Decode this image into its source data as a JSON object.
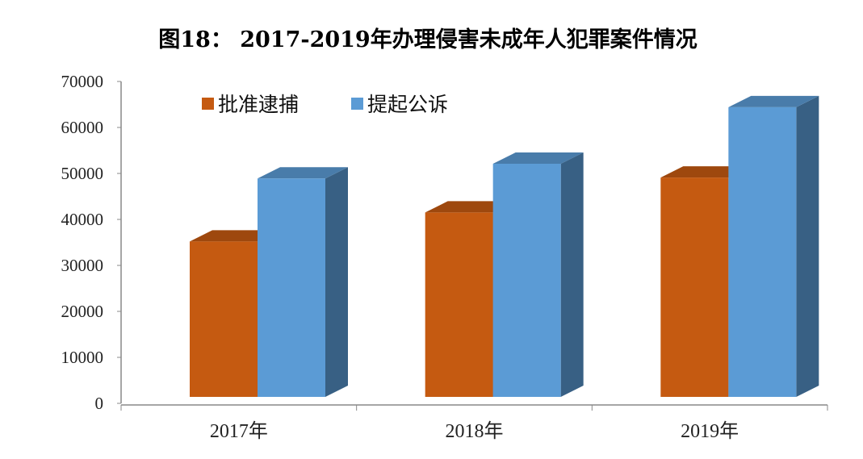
{
  "chart_data": {
    "type": "bar",
    "title": "图18： 2017-2019年办理侵害未成年人犯罪案件情况",
    "categories": [
      "2017年",
      "2018年",
      "2019年"
    ],
    "series": [
      {
        "name": "批准逮捕",
        "values": [
          33800,
          40100,
          47700
        ],
        "color": "#c55a11"
      },
      {
        "name": "提起公诉",
        "values": [
          47500,
          50700,
          63000
        ],
        "color": "#5b9bd5"
      }
    ],
    "ylim": [
      0,
      70000
    ],
    "yticks": [
      "0",
      "10000",
      "20000",
      "30000",
      "40000",
      "50000",
      "60000",
      "70000"
    ],
    "xlabel": "",
    "ylabel": "",
    "grid": false,
    "legend": "top-left",
    "style": "3d-column"
  }
}
